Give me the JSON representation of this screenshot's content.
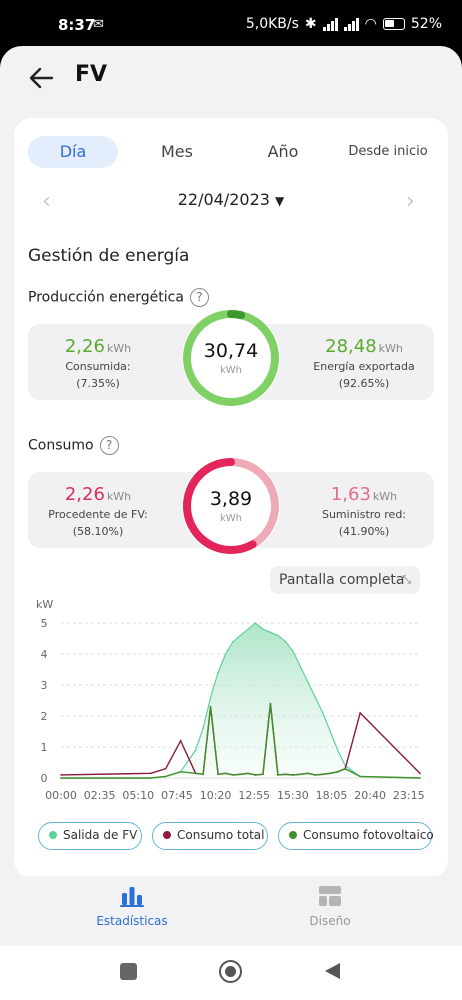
{
  "status_bar": {
    "time": "8:37",
    "speed": "5,0KB/s",
    "battery": "52%"
  },
  "header": {
    "title": "FV"
  },
  "tabs": [
    {
      "label": "Día",
      "active": true
    },
    {
      "label": "Mes",
      "active": false
    },
    {
      "label": "Año",
      "active": false
    },
    {
      "label": "Desde inicio",
      "active": false
    }
  ],
  "date": {
    "value": "22/04/2023",
    "caret": "▼"
  },
  "section_title": "Gestión de energía",
  "production": {
    "title": "Producción energética",
    "left": {
      "value": "2,26",
      "unit": "kWh",
      "label_line1": "Consumida:",
      "label_line2": "(7.35%)"
    },
    "center": {
      "value": "30,74",
      "unit": "kWh",
      "fraction": 0.0735
    },
    "right": {
      "value": "28,48",
      "unit": "kWh",
      "label_line1": "Energía exportada",
      "label_line2": "(92.65%)"
    },
    "colors": {
      "primary": "#7fd166",
      "secondary": "#3c9a2c"
    }
  },
  "consumption": {
    "title": "Consumo",
    "left": {
      "value": "2,26",
      "unit": "kWh",
      "label_line1": "Procedente de FV:",
      "label_line2": "(58.10%)"
    },
    "center": {
      "value": "3,89",
      "unit": "kWh",
      "fraction": 0.581
    },
    "right": {
      "value": "1,63",
      "unit": "kWh",
      "label_line1": "Suministro red:",
      "label_line2": "(41.90%)"
    },
    "colors": {
      "primary": "#e4255a",
      "secondary": "#eeaab7"
    }
  },
  "fullscreen_label": "Pantalla completa",
  "chart_data": {
    "type": "area",
    "ylabel": "kW",
    "ylim": [
      0,
      5
    ],
    "yticks": [
      "0",
      "1",
      "2",
      "3",
      "4",
      "5"
    ],
    "xticks": [
      "00:00",
      "02:35",
      "05:10",
      "07:45",
      "10:20",
      "12:55",
      "15:30",
      "18:05",
      "20:40",
      "23:15"
    ],
    "x": [
      "00:00",
      "06:00",
      "07:00",
      "08:00",
      "09:00",
      "09:30",
      "10:00",
      "10:30",
      "11:00",
      "11:30",
      "12:00",
      "12:30",
      "13:00",
      "13:30",
      "14:00",
      "14:30",
      "15:00",
      "15:30",
      "16:00",
      "16:30",
      "17:00",
      "17:30",
      "18:00",
      "18:30",
      "19:00",
      "20:00",
      "24:00"
    ],
    "series": [
      {
        "name": "Salida de FV",
        "color": "#5fd19a",
        "values": [
          0,
          0,
          0.05,
          0.2,
          0.9,
          1.6,
          2.6,
          3.4,
          4.0,
          4.4,
          4.6,
          4.8,
          5.0,
          4.8,
          4.7,
          4.6,
          4.4,
          4.1,
          3.6,
          3.1,
          2.6,
          2.1,
          1.5,
          0.9,
          0.4,
          0.05,
          0
        ]
      },
      {
        "name": "Consumo total",
        "color": "#8b1a3a",
        "values": [
          0.1,
          0.15,
          0.3,
          1.2,
          0.15,
          0.12,
          2.3,
          0.12,
          0.15,
          0.1,
          0.12,
          0.15,
          0.1,
          0.12,
          2.4,
          0.1,
          0.12,
          0.1,
          0.12,
          0.15,
          0.1,
          0.12,
          0.15,
          0.2,
          0.3,
          2.1,
          0.15
        ]
      },
      {
        "name": "Consumo fotovoltaico",
        "color": "#3f8f2a",
        "values": [
          0,
          0,
          0.05,
          0.2,
          0.15,
          0.12,
          2.3,
          0.12,
          0.15,
          0.1,
          0.12,
          0.15,
          0.1,
          0.12,
          2.4,
          0.1,
          0.12,
          0.1,
          0.12,
          0.15,
          0.1,
          0.12,
          0.15,
          0.2,
          0.3,
          0.05,
          0
        ]
      }
    ]
  },
  "legend": [
    {
      "label": "Salida de FV",
      "color": "#5fd19a"
    },
    {
      "label": "Consumo total",
      "color": "#8b1a3a"
    },
    {
      "label": "Consumo fotovoltaico",
      "color": "#3f8f2a"
    }
  ],
  "bottom_nav": [
    {
      "label": "Estadísticas",
      "active": true,
      "icon": "bar-chart-icon"
    },
    {
      "label": "Diseño",
      "active": false,
      "icon": "layout-icon"
    }
  ],
  "accent": "#2c6fd6"
}
